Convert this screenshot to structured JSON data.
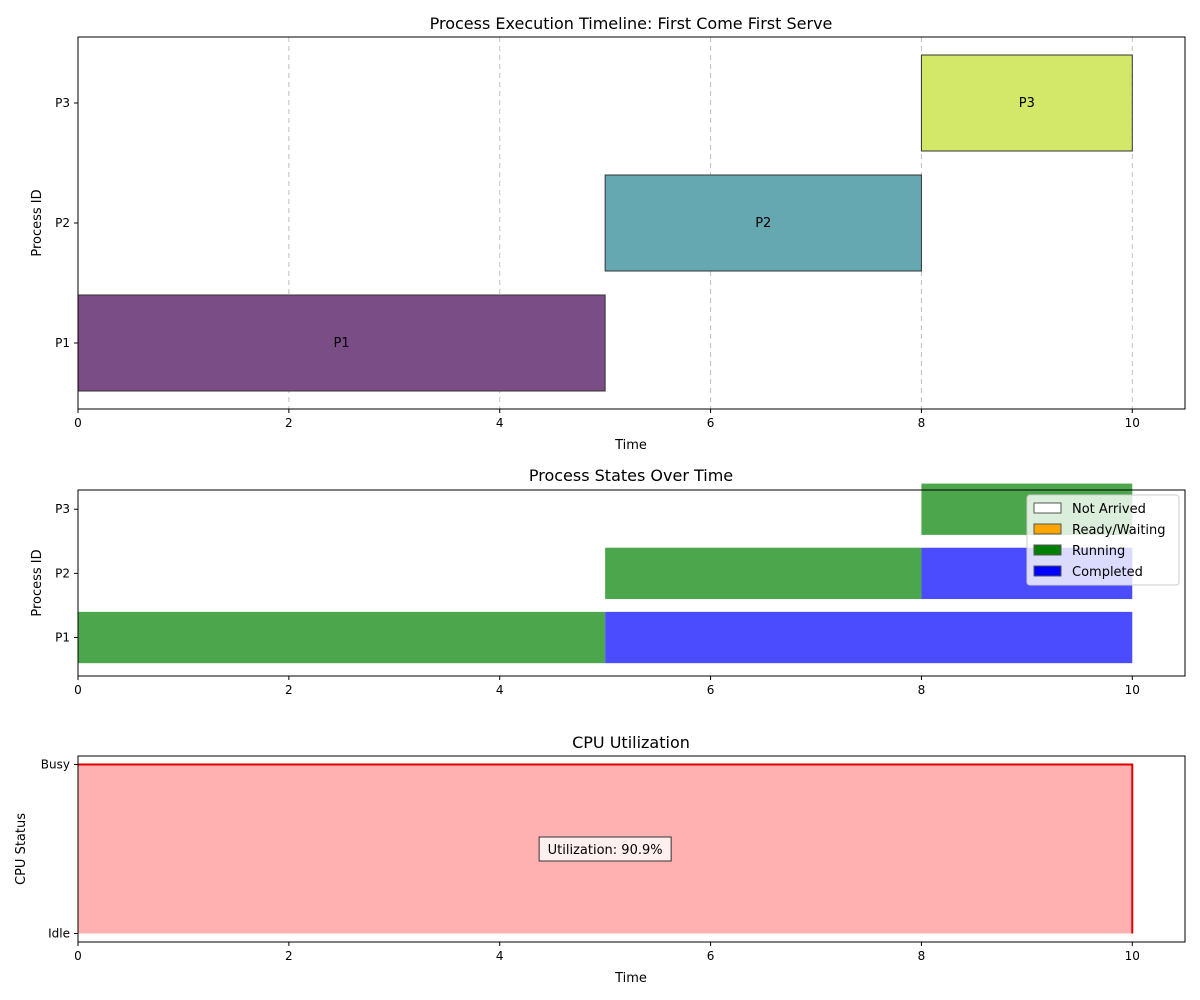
{
  "chart_data": [
    {
      "type": "gantt",
      "title": "Process Execution Timeline: First Come First Serve",
      "xlabel": "Time",
      "ylabel": "Process ID",
      "xlim": [
        0,
        10.5
      ],
      "xticks": [
        0,
        2,
        4,
        6,
        8,
        10
      ],
      "grid": "x-dashed",
      "categories": [
        "P1",
        "P2",
        "P3"
      ],
      "bars": [
        {
          "process": "P1",
          "start": 0,
          "end": 5,
          "label": "P1",
          "color": "#7b4d86"
        },
        {
          "process": "P2",
          "start": 5,
          "end": 8,
          "label": "P2",
          "color": "#66a8b1"
        },
        {
          "process": "P3",
          "start": 8,
          "end": 10,
          "label": "P3",
          "color": "#d3e869"
        }
      ]
    },
    {
      "type": "bar",
      "title": "Process States Over Time",
      "xlabel": "",
      "ylabel": "Process ID",
      "xlim": [
        0,
        10.5
      ],
      "xticks": [
        0,
        2,
        4,
        6,
        8,
        10
      ],
      "categories": [
        "P1",
        "P2",
        "P3"
      ],
      "legend_position": "top-right",
      "legend": [
        {
          "label": "Not Arrived",
          "color": "#ffffff"
        },
        {
          "label": "Ready/Waiting",
          "color": "#ffa500"
        },
        {
          "label": "Running",
          "color": "#008000"
        },
        {
          "label": "Completed",
          "color": "#0000ff"
        }
      ],
      "segments": [
        {
          "process": "P1",
          "state": "Running",
          "start": 0,
          "end": 5,
          "color": "#4ca64c"
        },
        {
          "process": "P1",
          "state": "Completed",
          "start": 5,
          "end": 10,
          "color": "#4c4cff"
        },
        {
          "process": "P2",
          "state": "Running",
          "start": 5,
          "end": 8,
          "color": "#4ca64c"
        },
        {
          "process": "P2",
          "state": "Completed",
          "start": 8,
          "end": 10,
          "color": "#4c4cff"
        },
        {
          "process": "P3",
          "state": "Running",
          "start": 8,
          "end": 10,
          "color": "#4ca64c"
        }
      ]
    },
    {
      "type": "area",
      "title": "CPU Utilization",
      "xlabel": "Time",
      "ylabel": "CPU Status",
      "xlim": [
        0,
        10.5
      ],
      "xticks": [
        0,
        2,
        4,
        6,
        8,
        10
      ],
      "yticklabels": [
        "Idle",
        "Busy"
      ],
      "x": [
        0,
        10
      ],
      "y": [
        1,
        1
      ],
      "fill_color": "#ffb1b1",
      "line_color": "#e00000",
      "annotation": "Utilization: 90.9%"
    }
  ]
}
